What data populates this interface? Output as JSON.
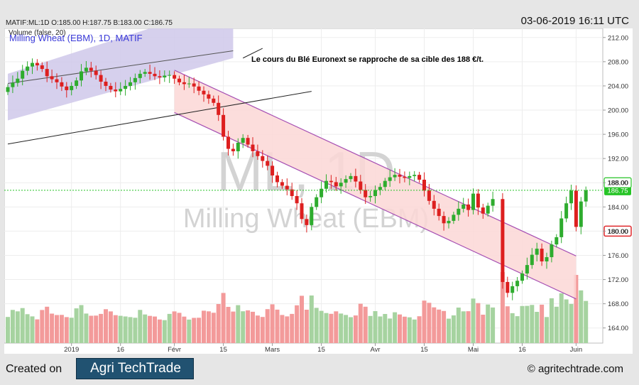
{
  "header": {
    "ohlc_line": "MATIF:ML:1D O:185.00 H:187.75 B:183.00 C:186.75",
    "datetime": "03-06-2019 16:11 UTC"
  },
  "footer": {
    "created_label": "Created on",
    "logo_text": "Agri TechTrade",
    "copyright": "© agritechtrade.com"
  },
  "colors": {
    "up": "#2eac2e",
    "down": "#dd1f1f",
    "vol_up": "#a6d3a0",
    "vol_down": "#f39a9a",
    "channel_purple": "#cfc8ea",
    "channel_red": "#fcd7d6",
    "channel_line": "#a64fb3",
    "title": "#3b3bd9",
    "price_line": "#26c426",
    "target": "#e0282c"
  },
  "chart_data": {
    "type": "candlestick",
    "instrument_title": "Milling Wheat (EBM), 1D, MATIF",
    "volume_label": "Volume (false, 20)",
    "watermark_symbol": "ML, 1D",
    "watermark_name": "Milling Wheat (EBM)",
    "annotation": "Le cours du Blé Euronext se rapproche de sa cible des 188 €/t.",
    "y_axis": {
      "range": [
        161.5,
        213.5
      ],
      "ticks": [
        164,
        168,
        172,
        176,
        180,
        184,
        188,
        192,
        196,
        200,
        204,
        208,
        212
      ],
      "tick_labels": [
        "164.00",
        "168.00",
        "172.00",
        "176.00",
        "180.00",
        "184.00",
        "188.00",
        "192.00",
        "196.00",
        "200.00",
        "204.00",
        "208.00",
        "212.00"
      ]
    },
    "x_axis": {
      "labels": [
        {
          "label": "2019",
          "bar": 13
        },
        {
          "label": "16",
          "bar": 23
        },
        {
          "label": "Févr",
          "bar": 34
        },
        {
          "label": "15",
          "bar": 44
        },
        {
          "label": "Mars",
          "bar": 54
        },
        {
          "label": "15",
          "bar": 64
        },
        {
          "label": "Avr",
          "bar": 75
        },
        {
          "label": "15",
          "bar": 85
        },
        {
          "label": "Mai",
          "bar": 95
        },
        {
          "label": "16",
          "bar": 105
        },
        {
          "label": "Juin",
          "bar": 116
        }
      ]
    },
    "grid": true,
    "last_price": {
      "value": 186.75,
      "label": "186.75"
    },
    "target_level": {
      "value": 188,
      "label": "188.00"
    },
    "stop_level": {
      "value": 180,
      "label": "180.00"
    },
    "closes": [
      203.8,
      204.5,
      205.2,
      206.5,
      207.2,
      207.8,
      207.4,
      206.8,
      205.6,
      205.1,
      204.6,
      203.9,
      203.3,
      204.0,
      204.9,
      206.4,
      207.0,
      206.5,
      205.8,
      204.7,
      204.0,
      203.4,
      203.1,
      203.5,
      204.0,
      204.6,
      205.3,
      206.0,
      206.3,
      206.0,
      205.6,
      205.4,
      205.7,
      205.8,
      205.2,
      204.6,
      204.3,
      204.4,
      203.9,
      203.2,
      202.6,
      201.9,
      201.2,
      199.2,
      195.6,
      193.6,
      193.2,
      194.6,
      195.4,
      194.3,
      193.2,
      192.4,
      191.6,
      190.8,
      189.2,
      188.1,
      187.5,
      186.9,
      185.8,
      184.6,
      182.0,
      181.0,
      184.0,
      185.6,
      187.0,
      188.3,
      188.1,
      187.4,
      188.0,
      188.6,
      189.1,
      188.2,
      186.8,
      185.6,
      185.8,
      186.8,
      187.3,
      188.3,
      188.9,
      189.3,
      189.0,
      188.8,
      189.1,
      189.3,
      188.5,
      186.7,
      185.0,
      183.7,
      182.5,
      181.3,
      181.7,
      182.7,
      183.7,
      184.4,
      183.5,
      186.2,
      183.9,
      182.9,
      184.2,
      185.3,
      null,
      171.6,
      169.8,
      170.9,
      171.8,
      173.0,
      174.4,
      176.1,
      177.1,
      175.0,
      175.7,
      177.8,
      179.0,
      182.1,
      184.6,
      186.7,
      180.7,
      184.9,
      186.75
    ],
    "volume_y_range": [
      0,
      100
    ]
  }
}
